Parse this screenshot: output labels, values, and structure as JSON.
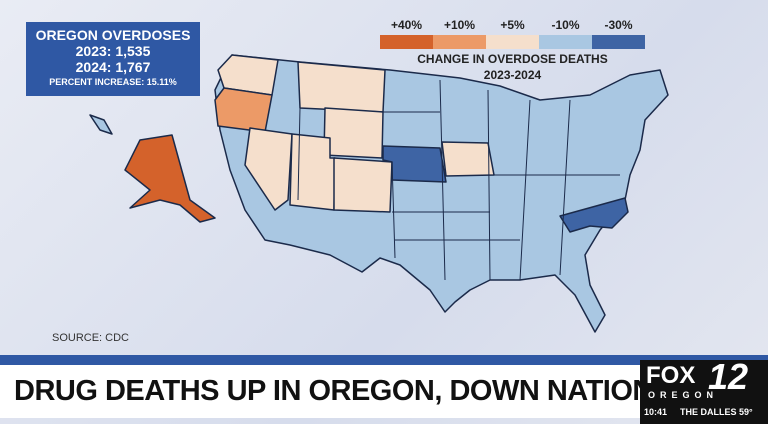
{
  "infobox": {
    "title": "OREGON OVERDOSES",
    "lines": [
      "2023: 1,535",
      "2024: 1,767"
    ],
    "note": "PERCENT INCREASE: 15.11%"
  },
  "legend": {
    "items": [
      {
        "label": "+40%",
        "color": "#d4622b"
      },
      {
        "label": "+10%",
        "color": "#ec9a67"
      },
      {
        "label": "+5%",
        "color": "#f5dfcc"
      },
      {
        "label": "-10%",
        "color": "#a9c7e2"
      },
      {
        "label": "-30%",
        "color": "#3e64a4"
      }
    ],
    "title": "CHANGE IN OVERDOSE DEATHS",
    "subtitle": "2023-2024"
  },
  "source": "SOURCE: CDC",
  "headline": "DRUG DEATHS UP IN OREGON, DOWN NATIONWIDE",
  "station": {
    "name": "FOX",
    "number": "12",
    "region": "OREGON",
    "time": "10:41",
    "weather": "THE DALLES 59°"
  }
}
